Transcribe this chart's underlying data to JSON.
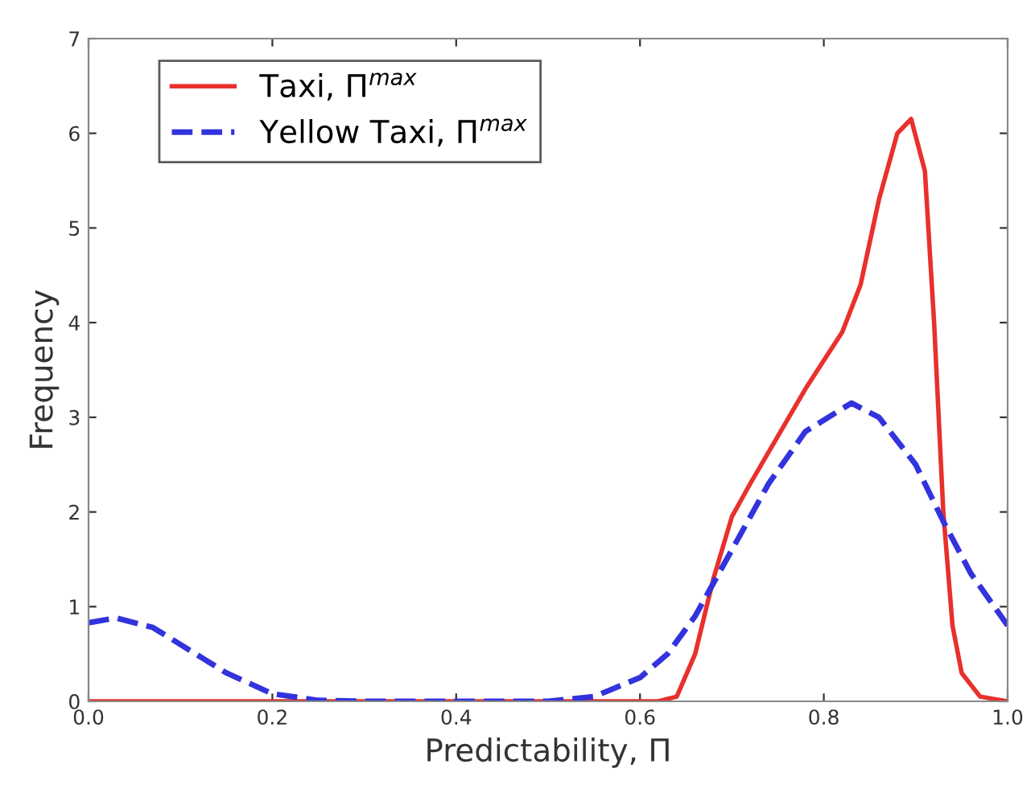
{
  "chart_data": {
    "type": "line",
    "xlabel": "Predictability, Π",
    "ylabel": "Frequency",
    "xlim": [
      0.0,
      1.0
    ],
    "xticks": [
      {
        "value": 0,
        "label": "0.0"
      },
      0.2,
      0.4,
      0.6,
      0.8,
      {
        "value": 1,
        "label": "1.0"
      }
    ],
    "ylim": [
      0,
      7
    ],
    "yticks": [
      0,
      1,
      2,
      3,
      4,
      5,
      6,
      7
    ],
    "grid": false,
    "legend": "top left",
    "marker": "none",
    "series": [
      {
        "name": "Taxi, Π$^{max}$",
        "color": "#e8302c",
        "line_style": "solid",
        "x": [
          0,
          0.2,
          0.4,
          0.6,
          0.62,
          0.64,
          0.66,
          0.68,
          0.7,
          0.72,
          0.75,
          0.78,
          0.82,
          0.84,
          0.86,
          0.88,
          0.895,
          0.91,
          0.92,
          0.93,
          0.94,
          0.95,
          0.97,
          1.0
        ],
        "values": [
          0,
          0,
          0,
          0,
          0,
          0.05,
          0.5,
          1.3,
          1.95,
          2.3,
          2.8,
          3.3,
          3.9,
          4.4,
          5.3,
          6.0,
          6.15,
          5.6,
          4.0,
          2.0,
          0.8,
          0.3,
          0.05,
          0
        ]
      },
      {
        "name": "Yellow Taxi, Π$^{max}$",
        "color": "#3333dd",
        "line_style": "dashed",
        "x": [
          0,
          0.03,
          0.07,
          0.1,
          0.15,
          0.2,
          0.25,
          0.3,
          0.4,
          0.5,
          0.55,
          0.6,
          0.63,
          0.66,
          0.7,
          0.74,
          0.78,
          0.83,
          0.86,
          0.9,
          0.93,
          0.96,
          1.0
        ],
        "values": [
          0.83,
          0.88,
          0.78,
          0.6,
          0.3,
          0.08,
          0.01,
          0,
          0,
          0,
          0.05,
          0.25,
          0.5,
          0.9,
          1.6,
          2.3,
          2.85,
          3.15,
          3.0,
          2.5,
          1.9,
          1.35,
          0.8
        ]
      }
    ]
  }
}
